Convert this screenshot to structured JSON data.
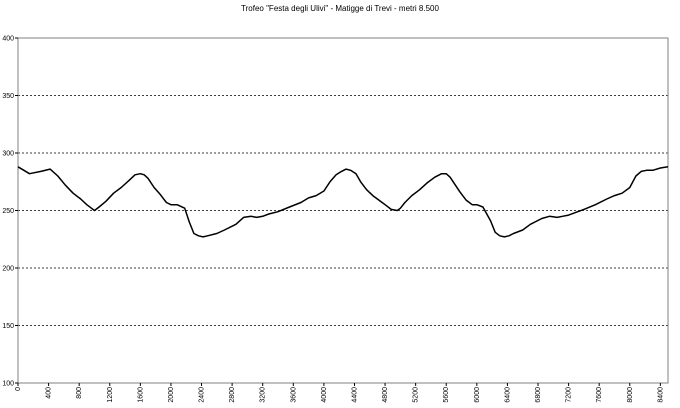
{
  "chart_data": {
    "type": "line",
    "title": "Trofeo \"Festa degli Ulivi\" - Matigge di Trevi - metri 8.500",
    "xlabel": "",
    "ylabel": "",
    "xlim": [
      0,
      8500
    ],
    "ylim": [
      100,
      400
    ],
    "y_ticks": [
      100,
      150,
      200,
      250,
      300,
      350,
      400
    ],
    "x_ticks": [
      0,
      400,
      800,
      1200,
      1600,
      2000,
      2400,
      2800,
      3200,
      3600,
      4000,
      4400,
      4800,
      5200,
      5600,
      6000,
      6400,
      6800,
      7200,
      7600,
      8000,
      8400
    ],
    "grid": "horizontal dashed",
    "legend": "none",
    "line_color": "#000000",
    "series": [
      {
        "x": [
          0,
          150,
          300,
          420,
          520,
          620,
          720,
          820,
          900,
          960,
          1000,
          1060,
          1150,
          1250,
          1350,
          1450,
          1530,
          1600,
          1650,
          1700,
          1780,
          1860,
          1940,
          2000,
          2080,
          2180,
          2240,
          2300,
          2360,
          2420,
          2480,
          2600,
          2700,
          2850,
          2950,
          3050,
          3120,
          3200,
          3280,
          3400,
          3550,
          3700,
          3800,
          3900,
          4000,
          4080,
          4160,
          4230,
          4290,
          4350,
          4420,
          4480,
          4560,
          4640,
          4720,
          4800,
          4880,
          4960,
          5000,
          5060,
          5150,
          5250,
          5350,
          5450,
          5540,
          5600,
          5650,
          5700,
          5780,
          5860,
          5940,
          6000,
          6080,
          6180,
          6240,
          6300,
          6360,
          6420,
          6480,
          6600,
          6700,
          6850,
          6950,
          7050,
          7120,
          7200,
          7280,
          7400,
          7550,
          7700,
          7800,
          7900,
          8000,
          8080,
          8150,
          8220,
          8300,
          8400,
          8500
        ],
        "values": [
          288,
          282,
          284,
          286,
          280,
          272,
          265,
          260,
          255,
          252,
          250,
          253,
          258,
          265,
          270,
          276,
          281,
          282,
          281,
          278,
          270,
          264,
          257,
          255,
          255,
          252,
          240,
          230,
          228,
          227,
          228,
          230,
          233,
          238,
          244,
          245,
          244,
          245,
          247,
          249,
          253,
          257,
          261,
          263,
          267,
          275,
          281,
          284,
          286,
          285,
          282,
          275,
          268,
          263,
          259,
          255,
          251,
          250,
          252,
          257,
          263,
          268,
          274,
          279,
          282,
          282,
          279,
          274,
          266,
          259,
          255,
          255,
          253,
          241,
          231,
          228,
          227,
          228,
          230,
          233,
          238,
          243,
          245,
          244,
          245,
          246,
          248,
          251,
          255,
          260,
          263,
          265,
          270,
          280,
          284,
          285,
          285,
          287,
          288
        ]
      }
    ]
  }
}
